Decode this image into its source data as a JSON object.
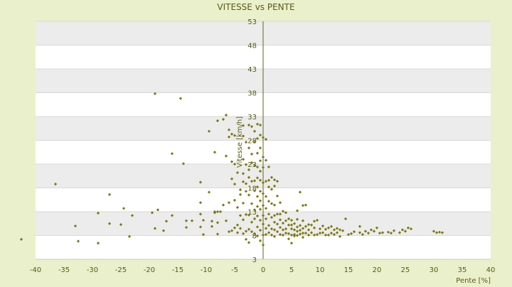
{
  "chart_data": {
    "type": "scatter",
    "title": "VITESSE vs PENTE",
    "xlabel": "Pente [%]",
    "ylabel": "Vitesse [km/h]",
    "xlim": [
      -40,
      40
    ],
    "ylim": [
      3,
      53
    ],
    "x_ticks": [
      -40,
      -35,
      -30,
      -25,
      -20,
      -15,
      -10,
      -5,
      0,
      5,
      10,
      15,
      20,
      25,
      30,
      35,
      40
    ],
    "y_ticks": [
      3,
      8,
      13,
      18,
      23,
      28,
      33,
      38,
      43,
      48,
      53
    ],
    "grid": true,
    "background_bands": "alternating white and light grey horizontal bands",
    "colors": {
      "page_bg": "#eaf0cc",
      "band_light": "#ffffff",
      "band_dark": "#ececec",
      "axis": "#5a6a1a",
      "marker": "#7c7a10",
      "text": "#5a5a10"
    },
    "series": [
      {
        "points": [
          [
            -42.5,
            7.2
          ],
          [
            -36.5,
            18.8
          ],
          [
            -33,
            10
          ],
          [
            -32.5,
            6.8
          ],
          [
            -29,
            6.4
          ],
          [
            -29,
            12.7
          ],
          [
            -27,
            16.6
          ],
          [
            -27,
            10.5
          ],
          [
            -25,
            10.3
          ],
          [
            -24.5,
            13.7
          ],
          [
            -23.5,
            7.8
          ],
          [
            -23,
            12.2
          ],
          [
            -19.5,
            12.8
          ],
          [
            -19,
            9.5
          ],
          [
            -19,
            37.8
          ],
          [
            -18.5,
            13.4
          ],
          [
            -17.5,
            9
          ],
          [
            -17,
            11
          ],
          [
            -16,
            12.2
          ],
          [
            -16,
            25.2
          ],
          [
            -14.5,
            36.8
          ],
          [
            -14,
            23.1
          ],
          [
            -13.5,
            11.1
          ],
          [
            -13.5,
            9.7
          ],
          [
            -12.5,
            11.1
          ],
          [
            -11,
            19.2
          ],
          [
            -11,
            14.9
          ],
          [
            -11,
            12.5
          ],
          [
            -11,
            9.8
          ],
          [
            -10.5,
            11.2
          ],
          [
            -10.5,
            8.2
          ],
          [
            -9.5,
            17.1
          ],
          [
            -9.5,
            29.9
          ],
          [
            -9,
            11
          ],
          [
            -9,
            9.9
          ],
          [
            -8.5,
            25.5
          ],
          [
            -8.5,
            12.8
          ],
          [
            -8.5,
            13
          ],
          [
            -8,
            32.1
          ],
          [
            -8,
            13
          ],
          [
            -8,
            10.7
          ],
          [
            -8,
            8.3
          ],
          [
            -7.5,
            13
          ],
          [
            -7,
            32.4
          ],
          [
            -7,
            14.4
          ],
          [
            -6.5,
            33.3
          ],
          [
            -6.5,
            24.7
          ],
          [
            -6.5,
            11.1
          ],
          [
            -6,
            30.2
          ],
          [
            -6,
            28.7
          ],
          [
            -6,
            14.9
          ],
          [
            -6,
            8.8
          ],
          [
            -5.5,
            23.5
          ],
          [
            -5.5,
            19.9
          ],
          [
            -5.5,
            29.3
          ],
          [
            -5.5,
            9
          ],
          [
            -5,
            29
          ],
          [
            -5,
            23
          ],
          [
            -5,
            18.8
          ],
          [
            -5,
            15.4
          ],
          [
            -5,
            9.6
          ],
          [
            -4.5,
            21.2
          ],
          [
            -4.5,
            13.9
          ],
          [
            -4.5,
            10.2
          ],
          [
            -4.5,
            8.6
          ],
          [
            -4,
            17.6
          ],
          [
            -4,
            16.6
          ],
          [
            -4,
            12.2
          ],
          [
            -4,
            9.5
          ],
          [
            -3.5,
            31.1
          ],
          [
            -3.5,
            28.9
          ],
          [
            -3.5,
            24
          ],
          [
            -3.5,
            21
          ],
          [
            -3.5,
            19.3
          ],
          [
            -3.5,
            14.8
          ],
          [
            -3.5,
            11.3
          ],
          [
            -3.5,
            8.4
          ],
          [
            -3,
            27.6
          ],
          [
            -3,
            22.9
          ],
          [
            -3,
            18.9
          ],
          [
            -3,
            17.3
          ],
          [
            -3,
            12.4
          ],
          [
            -3,
            8.9
          ],
          [
            -3,
            7.2
          ],
          [
            -2.5,
            31.2
          ],
          [
            -2.5,
            26.4
          ],
          [
            -2.5,
            21.8
          ],
          [
            -2.5,
            20.2
          ],
          [
            -2.5,
            16.5
          ],
          [
            -2.5,
            12.3
          ],
          [
            -2.5,
            9.3
          ],
          [
            -2.5,
            6.5
          ],
          [
            -2,
            30.9
          ],
          [
            -2,
            25.1
          ],
          [
            -2,
            23.3
          ],
          [
            -2,
            19.4
          ],
          [
            -2,
            14.7
          ],
          [
            -2,
            10.8
          ],
          [
            -2,
            8.8
          ],
          [
            -1.5,
            29.9
          ],
          [
            -1.5,
            27.6
          ],
          [
            -1.5,
            22.8
          ],
          [
            -1.5,
            19.5
          ],
          [
            -1.5,
            17.4
          ],
          [
            -1.5,
            13.4
          ],
          [
            -1.5,
            11.5
          ],
          [
            -1.5,
            8.4
          ],
          [
            -1,
            31.4
          ],
          [
            -1,
            28.4
          ],
          [
            -1,
            25.3
          ],
          [
            -1,
            22.4
          ],
          [
            -1,
            20.1
          ],
          [
            -1,
            18.2
          ],
          [
            -1,
            16.2
          ],
          [
            -1,
            14.1
          ],
          [
            -1,
            12.1
          ],
          [
            -1,
            9.8
          ],
          [
            -1,
            7.9
          ],
          [
            -0.5,
            31.2
          ],
          [
            -0.5,
            29.1
          ],
          [
            -0.5,
            26.4
          ],
          [
            -0.5,
            23.7
          ],
          [
            -0.5,
            21.5
          ],
          [
            -0.5,
            19.6
          ],
          [
            -0.5,
            17.3
          ],
          [
            -0.5,
            15.3
          ],
          [
            -0.5,
            13.5
          ],
          [
            -0.5,
            11.2
          ],
          [
            -0.5,
            9.1
          ],
          [
            -0.5,
            6.9
          ],
          [
            0,
            28.6
          ],
          [
            0,
            24.5
          ],
          [
            0,
            22.3
          ],
          [
            0,
            19.1
          ],
          [
            0,
            16.8
          ],
          [
            0,
            14.3
          ],
          [
            0,
            12.2
          ],
          [
            0,
            10.4
          ],
          [
            0,
            8.1
          ],
          [
            0,
            6
          ],
          [
            0.5,
            28.2
          ],
          [
            0.5,
            23.8
          ],
          [
            0.5,
            19.4
          ],
          [
            0.5,
            16.2
          ],
          [
            0.5,
            13.7
          ],
          [
            0.5,
            11.5
          ],
          [
            0.5,
            9.5
          ],
          [
            0.5,
            8.2
          ],
          [
            1,
            22.4
          ],
          [
            1,
            19.6
          ],
          [
            1,
            18.2
          ],
          [
            1,
            15.2
          ],
          [
            1,
            12.5
          ],
          [
            1,
            10.1
          ],
          [
            1,
            8.6
          ],
          [
            1.5,
            20.2
          ],
          [
            1.5,
            17.7
          ],
          [
            1.5,
            14.7
          ],
          [
            1.5,
            11.8
          ],
          [
            1.5,
            9.4
          ],
          [
            1.5,
            8.1
          ],
          [
            2,
            19.7
          ],
          [
            2,
            18.4
          ],
          [
            2,
            14.4
          ],
          [
            2,
            12.2
          ],
          [
            2,
            10.8
          ],
          [
            2,
            9.2
          ],
          [
            2,
            7.8
          ],
          [
            2.5,
            19.4
          ],
          [
            2.5,
            16.3
          ],
          [
            2.5,
            12.5
          ],
          [
            2.5,
            10.4
          ],
          [
            2.5,
            8.8
          ],
          [
            3,
            14.9
          ],
          [
            3,
            12.5
          ],
          [
            3,
            11.3
          ],
          [
            3,
            9.7
          ],
          [
            3,
            8.2
          ],
          [
            3.5,
            13.1
          ],
          [
            3.5,
            10.6
          ],
          [
            3.5,
            9.2
          ],
          [
            3.5,
            8.1
          ],
          [
            4,
            12.8
          ],
          [
            4,
            11.1
          ],
          [
            4,
            9.4
          ],
          [
            4,
            8.5
          ],
          [
            4.5,
            11.5
          ],
          [
            4.5,
            10.2
          ],
          [
            4.5,
            8.4
          ],
          [
            4.5,
            7.3
          ],
          [
            5,
            11.2
          ],
          [
            5,
            10.2
          ],
          [
            5,
            9.4
          ],
          [
            5,
            8.1
          ],
          [
            5,
            6.4
          ],
          [
            5.5,
            10.5
          ],
          [
            5.5,
            9.2
          ],
          [
            5.5,
            8.2
          ],
          [
            5.5,
            7.9
          ],
          [
            6,
            13.2
          ],
          [
            6,
            11.4
          ],
          [
            6,
            9.8
          ],
          [
            6,
            8.9
          ],
          [
            6,
            8
          ],
          [
            6.5,
            17.1
          ],
          [
            6.5,
            10.1
          ],
          [
            6.5,
            9.1
          ],
          [
            6.5,
            8.3
          ],
          [
            7,
            14.3
          ],
          [
            7,
            11.1
          ],
          [
            7,
            9.5
          ],
          [
            7,
            8.5
          ],
          [
            7,
            7.6
          ],
          [
            7.5,
            14.4
          ],
          [
            7.5,
            9.9
          ],
          [
            7.5,
            8.5
          ],
          [
            8,
            10.3
          ],
          [
            8,
            9.2
          ],
          [
            8,
            8.1
          ],
          [
            8.5,
            10.2
          ],
          [
            8.5,
            8.6
          ],
          [
            9,
            11
          ],
          [
            9,
            9.6
          ],
          [
            9,
            8.1
          ],
          [
            9.5,
            11.2
          ],
          [
            9.5,
            8.2
          ],
          [
            10,
            9.4
          ],
          [
            10,
            8.5
          ],
          [
            10.5,
            10
          ],
          [
            10.5,
            8.6
          ],
          [
            11,
            9.3
          ],
          [
            11,
            8.1
          ],
          [
            11.5,
            9.6
          ],
          [
            11.5,
            8.1
          ],
          [
            12,
            9.9
          ],
          [
            12,
            8.5
          ],
          [
            12.5,
            9.2
          ],
          [
            12.5,
            8.2
          ],
          [
            13,
            9.5
          ],
          [
            13,
            8.6
          ],
          [
            13.5,
            9.2
          ],
          [
            13.5,
            7.8
          ],
          [
            14,
            9
          ],
          [
            14.5,
            11.5
          ],
          [
            15,
            8.2
          ],
          [
            15.5,
            8.4
          ],
          [
            16,
            8.8
          ],
          [
            17,
            9.9
          ],
          [
            17,
            8.6
          ],
          [
            17.5,
            8.2
          ],
          [
            18,
            8.9
          ],
          [
            18.5,
            8.5
          ],
          [
            19,
            9.2
          ],
          [
            19.5,
            8.9
          ],
          [
            20,
            9.6
          ],
          [
            20.5,
            8.5
          ],
          [
            21,
            8.6
          ],
          [
            22,
            8.7
          ],
          [
            22.5,
            8.5
          ],
          [
            23,
            9
          ],
          [
            24,
            8.6
          ],
          [
            24.5,
            9.2
          ],
          [
            25,
            8.9
          ],
          [
            25.5,
            9.6
          ],
          [
            26,
            9.4
          ],
          [
            30,
            8.9
          ],
          [
            30.5,
            8.6
          ],
          [
            31,
            8.7
          ],
          [
            31.5,
            8.6
          ]
        ]
      }
    ]
  }
}
